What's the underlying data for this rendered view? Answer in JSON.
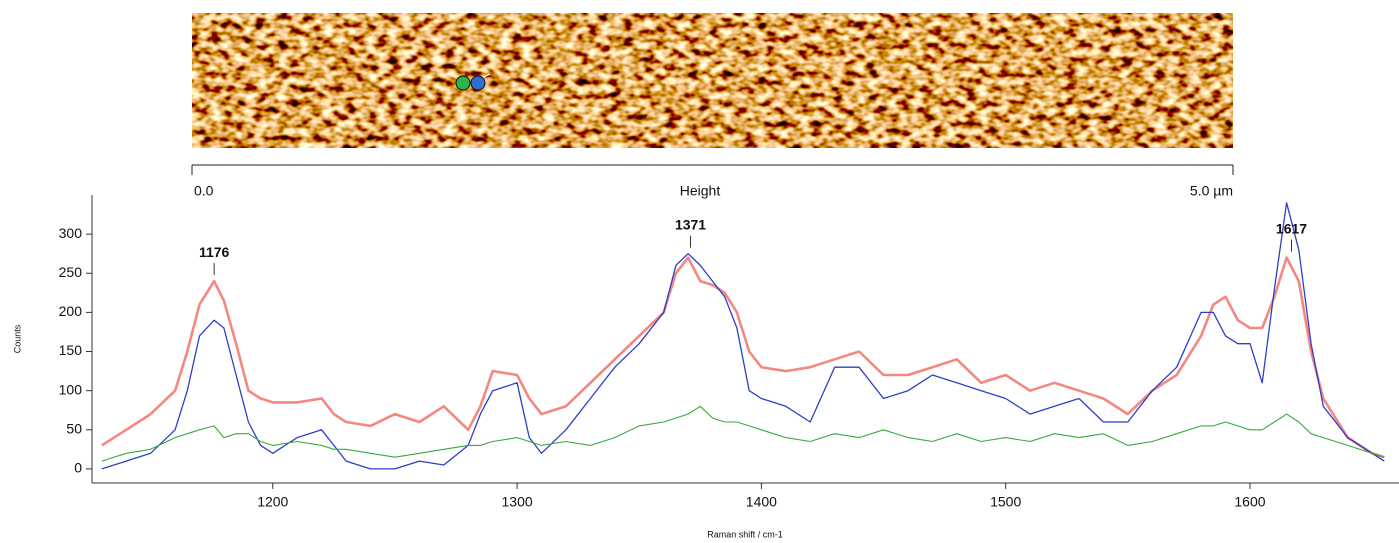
{
  "image": {
    "scale_start": "0.0",
    "scale_title": "Height",
    "scale_end": "5.0 µm"
  },
  "chart_data": {
    "type": "line",
    "y_label": "Counts",
    "x_label": "Raman shift / cm-1",
    "xlim": [
      1126,
      1661
    ],
    "xticks": [
      1200,
      1300,
      1400,
      1500,
      1600
    ],
    "ylim": [
      -18,
      350
    ],
    "yticks": [
      0,
      50,
      100,
      150,
      200,
      250,
      300
    ],
    "x": [
      1130,
      1140,
      1150,
      1160,
      1165,
      1170,
      1176,
      1180,
      1185,
      1190,
      1195,
      1200,
      1210,
      1220,
      1225,
      1230,
      1240,
      1250,
      1260,
      1270,
      1280,
      1285,
      1290,
      1300,
      1305,
      1310,
      1320,
      1330,
      1340,
      1350,
      1360,
      1365,
      1370,
      1375,
      1380,
      1385,
      1390,
      1395,
      1400,
      1410,
      1420,
      1430,
      1440,
      1450,
      1460,
      1470,
      1480,
      1490,
      1500,
      1510,
      1520,
      1530,
      1540,
      1550,
      1560,
      1570,
      1580,
      1585,
      1590,
      1595,
      1600,
      1605,
      1610,
      1615,
      1620,
      1625,
      1630,
      1640,
      1650,
      1655
    ],
    "series": [
      {
        "color": "#f4877f",
        "values": [
          30,
          50,
          70,
          100,
          150,
          210,
          240,
          215,
          160,
          100,
          90,
          85,
          85,
          90,
          70,
          60,
          55,
          70,
          60,
          80,
          50,
          80,
          125,
          120,
          90,
          70,
          80,
          110,
          140,
          170,
          200,
          250,
          270,
          240,
          235,
          225,
          200,
          150,
          130,
          125,
          130,
          140,
          150,
          120,
          120,
          130,
          140,
          110,
          120,
          100,
          110,
          100,
          90,
          70,
          100,
          120,
          170,
          210,
          220,
          190,
          180,
          180,
          220,
          270,
          240,
          150,
          90,
          40,
          20,
          15
        ]
      },
      {
        "color": "#2d3fc8",
        "values": [
          0,
          10,
          20,
          50,
          100,
          170,
          190,
          180,
          120,
          60,
          30,
          20,
          40,
          50,
          30,
          10,
          0,
          0,
          10,
          5,
          30,
          70,
          100,
          110,
          40,
          20,
          50,
          90,
          130,
          160,
          200,
          260,
          275,
          260,
          240,
          220,
          180,
          100,
          90,
          80,
          60,
          130,
          130,
          90,
          100,
          120,
          110,
          100,
          90,
          70,
          80,
          90,
          60,
          60,
          100,
          130,
          200,
          200,
          170,
          160,
          160,
          110,
          230,
          340,
          280,
          160,
          80,
          40,
          20,
          10
        ]
      },
      {
        "color": "#3aaa3a",
        "values": [
          10,
          20,
          25,
          40,
          45,
          50,
          55,
          40,
          45,
          45,
          35,
          30,
          35,
          30,
          25,
          25,
          20,
          15,
          20,
          25,
          30,
          30,
          35,
          40,
          35,
          30,
          35,
          30,
          40,
          55,
          60,
          65,
          70,
          80,
          65,
          60,
          60,
          55,
          50,
          40,
          35,
          45,
          40,
          50,
          40,
          35,
          45,
          35,
          40,
          35,
          45,
          40,
          45,
          30,
          35,
          45,
          55,
          55,
          60,
          55,
          50,
          50,
          60,
          70,
          60,
          45,
          40,
          30,
          20,
          15
        ]
      }
    ],
    "annotations": [
      {
        "x": 1176,
        "y": 240
      },
      {
        "x": 1371,
        "y": 275
      },
      {
        "x": 1617,
        "y": 270
      }
    ]
  }
}
